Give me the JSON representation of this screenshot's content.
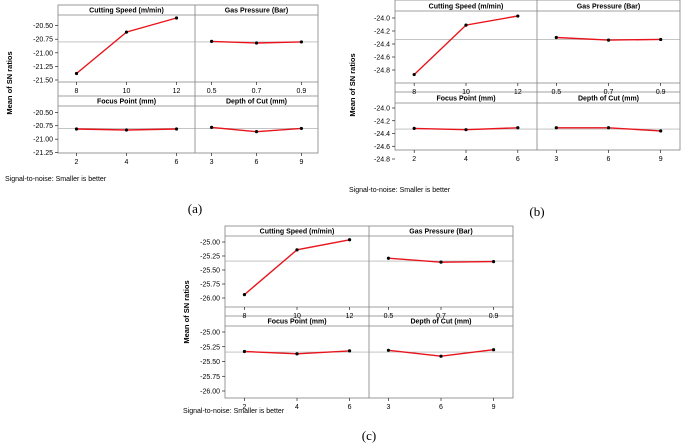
{
  "colors": {
    "line": "#e8141c",
    "marker": "#000000",
    "frame": "#808080",
    "reference": "#a0a0a0"
  },
  "chart_data": [
    {
      "type": "line",
      "caption": "(a)",
      "ylabel": "Mean of SN ratios",
      "note": "Signal-to-noise: Smaller is better",
      "yticks": [
        -20.5,
        -20.75,
        -21.0,
        -21.25,
        -21.5
      ],
      "ytick_labels": [
        "-20.50",
        "-20.75",
        "-21.00",
        "-21.25",
        "-21.50"
      ],
      "ylim": [
        -21.55,
        -20.3
      ],
      "reference": -20.8,
      "panels": [
        {
          "title": "Cutting Speed (m/min)",
          "categories": [
            "8",
            "10",
            "12"
          ],
          "values": [
            -21.38,
            -20.62,
            -20.36
          ]
        },
        {
          "title": "Gas Pressure (Bar)",
          "categories": [
            "0.5",
            "0.7",
            "0.9"
          ],
          "values": [
            -20.79,
            -20.82,
            -20.8
          ]
        },
        {
          "title": "Focus Point (mm)",
          "categories": [
            "2",
            "4",
            "6"
          ],
          "values": [
            -20.81,
            -20.83,
            -20.81
          ]
        },
        {
          "title": "Depth of Cut (mm)",
          "categories": [
            "3",
            "6",
            "9"
          ],
          "values": [
            -20.78,
            -20.86,
            -20.8
          ]
        }
      ]
    },
    {
      "type": "line",
      "caption": "(b)",
      "ylabel": "Mean of SN ratios",
      "note": "Signal-to-noise: Smaller is better",
      "yticks": [
        -24.0,
        -24.2,
        -24.4,
        -24.6,
        -24.8
      ],
      "ytick_labels": [
        "-24.0",
        "-24.2",
        "-24.4",
        "-24.6",
        "-24.8"
      ],
      "ylim": [
        -24.92,
        -23.93
      ],
      "reference": -24.33,
      "panels": [
        {
          "title": "Cutting Speed (m/min)",
          "categories": [
            "8",
            "10",
            "12"
          ],
          "values": [
            -24.87,
            -24.11,
            -23.97
          ]
        },
        {
          "title": "Gas Pressure (Bar)",
          "categories": [
            "0.5",
            "0.7",
            "0.9"
          ],
          "values": [
            -24.3,
            -24.34,
            -24.33
          ]
        },
        {
          "title": "Focus Point (mm)",
          "categories": [
            "2",
            "4",
            "6"
          ],
          "values": [
            -24.32,
            -24.34,
            -24.31
          ]
        },
        {
          "title": "Depth of Cut (mm)",
          "categories": [
            "3",
            "6",
            "9"
          ],
          "values": [
            -24.31,
            -24.31,
            -24.36
          ]
        }
      ]
    },
    {
      "type": "line",
      "caption": "(c)",
      "ylabel": "Mean of SN ratios",
      "note": "Signal-to-noise: Smaller is better",
      "yticks": [
        -25.0,
        -25.25,
        -25.5,
        -25.75,
        -26.0
      ],
      "ytick_labels": [
        "-25.00",
        "-25.25",
        "-25.50",
        "-25.75",
        "-26.00"
      ],
      "ylim": [
        -26.05,
        -24.9
      ],
      "reference": -25.34,
      "panels": [
        {
          "title": "Cutting Speed (m/min)",
          "categories": [
            "8",
            "10",
            "12"
          ],
          "values": [
            -25.94,
            -25.14,
            -24.96
          ]
        },
        {
          "title": "Gas Pressure (Bar)",
          "categories": [
            "0.5",
            "0.7",
            "0.9"
          ],
          "values": [
            -25.29,
            -25.36,
            -25.35
          ]
        },
        {
          "title": "Focus Point (mm)",
          "categories": [
            "2",
            "4",
            "6"
          ],
          "values": [
            -25.33,
            -25.37,
            -25.32
          ]
        },
        {
          "title": "Depth of Cut (mm)",
          "categories": [
            "3",
            "6",
            "9"
          ],
          "values": [
            -25.31,
            -25.41,
            -25.3
          ]
        }
      ]
    }
  ]
}
